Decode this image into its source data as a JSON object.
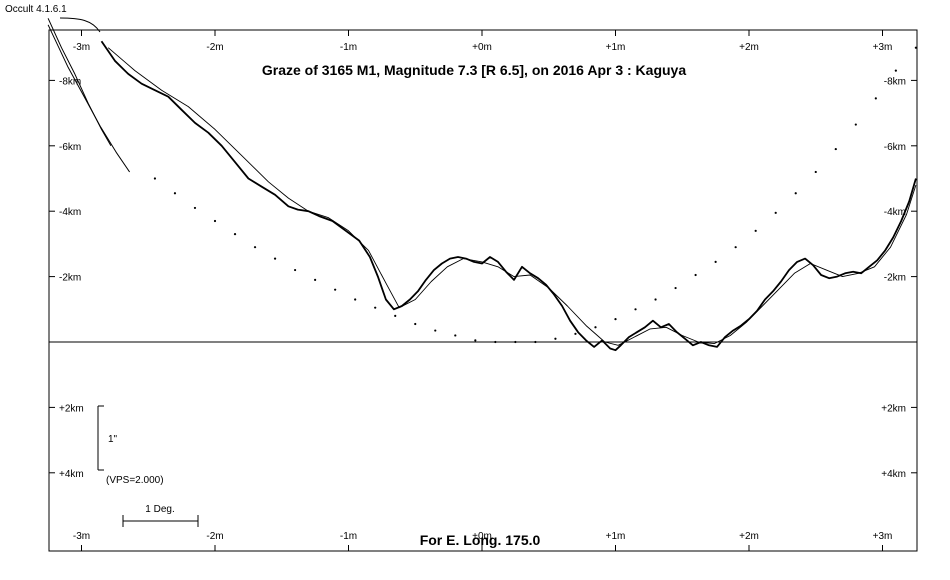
{
  "app_version": "Occult 4.1.6.1",
  "title": "Graze of  3165 M1,  Magnitude 7.3 [R 6.5],  on 2016 Apr  3  :  Kaguya",
  "footer": "For E. Long. 175.0",
  "scale_bar": {
    "arcsec_label": "1\"",
    "vps_label": "(VPS=2.000)",
    "deg_label": "1 Deg."
  },
  "chart_data": {
    "type": "line",
    "title": "Graze of  3165 M1,  Magnitude 7.3 [R 6.5],  on 2016 Apr  3  :  Kaguya",
    "grid": false,
    "x_unit": "m",
    "xlim": [
      -3.25,
      3.25
    ],
    "ylim": [
      -10.5,
      6.2
    ],
    "x_ticks": [
      {
        "value": -3,
        "label": "-3m"
      },
      {
        "value": -2,
        "label": "-2m"
      },
      {
        "value": -1,
        "label": "-1m"
      },
      {
        "value": 0,
        "label": "+0m"
      },
      {
        "value": 1,
        "label": "+1m"
      },
      {
        "value": 2,
        "label": "+2m"
      },
      {
        "value": 3,
        "label": "+3m"
      }
    ],
    "y_ticks_upper": [
      {
        "value": -8,
        "label": "-8km"
      },
      {
        "value": -6,
        "label": "-6km"
      },
      {
        "value": -4,
        "label": "-4km"
      },
      {
        "value": -2,
        "label": "-2km"
      }
    ],
    "y_ticks_lower": [
      {
        "value": 2,
        "label": "+2km"
      },
      {
        "value": 4,
        "label": "+4km"
      }
    ],
    "series": [
      {
        "style": "limb-profile-detailed",
        "x": [
          -2.85,
          -2.75,
          -2.65,
          -2.55,
          -2.45,
          -2.35,
          -2.25,
          -2.15,
          -2.05,
          -1.95,
          -1.85,
          -1.75,
          -1.65,
          -1.55,
          -1.45,
          -1.38,
          -1.3,
          -1.22,
          -1.12,
          -1.02,
          -0.92,
          -0.84,
          -0.78,
          -0.72,
          -0.66,
          -0.6,
          -0.54,
          -0.48,
          -0.42,
          -0.36,
          -0.3,
          -0.24,
          -0.18,
          -0.12,
          -0.06,
          0.0,
          0.06,
          0.12,
          0.18,
          0.24,
          0.3,
          0.36,
          0.42,
          0.48,
          0.54,
          0.6,
          0.66,
          0.72,
          0.78,
          0.84,
          0.9,
          0.96,
          1.0,
          1.04,
          1.1,
          1.16,
          1.22,
          1.28,
          1.34,
          1.4,
          1.46,
          1.52,
          1.58,
          1.64,
          1.7,
          1.76,
          1.82,
          1.88,
          1.94,
          2.0,
          2.06,
          2.12,
          2.18,
          2.24,
          2.3,
          2.36,
          2.42,
          2.48,
          2.54,
          2.6,
          2.66,
          2.72,
          2.78,
          2.84,
          2.9,
          2.96,
          3.02,
          3.08,
          3.14,
          3.2,
          3.25
        ],
        "y": [
          -9.2,
          -8.6,
          -8.2,
          -7.9,
          -7.7,
          -7.5,
          -7.1,
          -6.7,
          -6.4,
          -6.0,
          -5.5,
          -5.0,
          -4.75,
          -4.5,
          -4.15,
          -4.05,
          -4.0,
          -3.85,
          -3.7,
          -3.4,
          -3.1,
          -2.6,
          -2.0,
          -1.3,
          -1.0,
          -1.1,
          -1.3,
          -1.55,
          -1.9,
          -2.2,
          -2.4,
          -2.55,
          -2.6,
          -2.55,
          -2.45,
          -2.4,
          -2.6,
          -2.45,
          -2.15,
          -1.9,
          -2.3,
          -2.1,
          -1.95,
          -1.75,
          -1.45,
          -1.1,
          -0.65,
          -0.3,
          -0.05,
          0.15,
          -0.05,
          0.2,
          0.25,
          0.1,
          -0.15,
          -0.3,
          -0.45,
          -0.65,
          -0.45,
          -0.55,
          -0.3,
          -0.1,
          0.1,
          0.0,
          0.1,
          0.15,
          -0.15,
          -0.35,
          -0.5,
          -0.7,
          -0.95,
          -1.3,
          -1.55,
          -1.85,
          -2.2,
          -2.45,
          -2.55,
          -2.35,
          -2.05,
          -1.95,
          -2.0,
          -2.1,
          -2.15,
          -2.1,
          -2.3,
          -2.5,
          -2.8,
          -3.2,
          -3.7,
          -4.3,
          -5.0
        ]
      },
      {
        "style": "limb-profile-smoothed",
        "x": [
          -2.8,
          -2.6,
          -2.4,
          -2.2,
          -2.0,
          -1.8,
          -1.6,
          -1.45,
          -1.3,
          -1.15,
          -1.0,
          -0.85,
          -0.72,
          -0.62,
          -0.5,
          -0.38,
          -0.26,
          -0.14,
          0.0,
          0.12,
          0.24,
          0.36,
          0.5,
          0.64,
          0.78,
          0.92,
          1.02,
          1.14,
          1.26,
          1.38,
          1.5,
          1.62,
          1.74,
          1.86,
          1.98,
          2.1,
          2.22,
          2.34,
          2.46,
          2.58,
          2.7,
          2.82,
          2.94,
          3.06,
          3.18,
          3.25
        ],
        "y": [
          -9.0,
          -8.3,
          -7.7,
          -7.2,
          -6.5,
          -5.7,
          -4.9,
          -4.4,
          -4.0,
          -3.8,
          -3.4,
          -2.8,
          -1.8,
          -1.05,
          -1.3,
          -1.85,
          -2.3,
          -2.55,
          -2.45,
          -2.3,
          -2.0,
          -2.05,
          -1.65,
          -1.1,
          -0.5,
          0.0,
          0.1,
          -0.15,
          -0.4,
          -0.45,
          -0.2,
          0.0,
          0.05,
          -0.2,
          -0.6,
          -1.1,
          -1.6,
          -2.1,
          -2.4,
          -2.2,
          -2.0,
          -2.1,
          -2.3,
          -2.9,
          -3.9,
          -4.8
        ]
      },
      {
        "style": "southern-limit-curve-1",
        "x": [
          -3.25,
          -3.1,
          -2.98,
          -2.86,
          -2.74,
          -2.64
        ],
        "y": [
          -9.7,
          -8.4,
          -7.5,
          -6.6,
          -5.8,
          -5.2
        ]
      },
      {
        "style": "southern-limit-curve-2",
        "x": [
          -3.25,
          -3.15,
          -3.05,
          -2.95,
          -2.85,
          -2.78
        ],
        "y": [
          -9.9,
          -9.0,
          -8.2,
          -7.3,
          -6.5,
          -6.0
        ]
      },
      {
        "style": "mean-limb-dotted",
        "x": [
          -2.45,
          -2.3,
          -2.15,
          -2.0,
          -1.85,
          -1.7,
          -1.55,
          -1.4,
          -1.25,
          -1.1,
          -0.95,
          -0.8,
          -0.65,
          -0.5,
          -0.35,
          -0.2,
          -0.05,
          0.1,
          0.25,
          0.4,
          0.55,
          0.7,
          0.85,
          1.0,
          1.15,
          1.3,
          1.45,
          1.6,
          1.75,
          1.9,
          2.05,
          2.2,
          2.35,
          2.5,
          2.65,
          2.8,
          2.95,
          3.1,
          3.25
        ],
        "y": [
          -5.0,
          -4.55,
          -4.1,
          -3.7,
          -3.3,
          -2.9,
          -2.55,
          -2.2,
          -1.9,
          -1.6,
          -1.3,
          -1.05,
          -0.8,
          -0.55,
          -0.35,
          -0.2,
          -0.05,
          0.0,
          0.0,
          0.0,
          -0.1,
          -0.25,
          -0.45,
          -0.7,
          -1.0,
          -1.3,
          -1.65,
          -2.05,
          -2.45,
          -2.9,
          -3.4,
          -3.95,
          -4.55,
          -5.2,
          -5.9,
          -6.65,
          -7.45,
          -8.3,
          -9.0
        ]
      }
    ]
  }
}
